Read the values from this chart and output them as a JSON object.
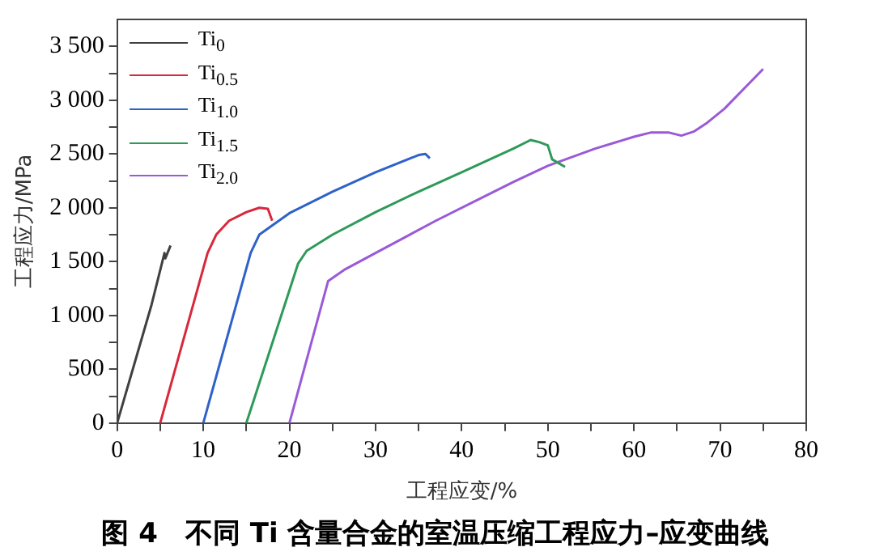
{
  "chart_data": {
    "type": "line",
    "title": "图 4　不同 Ti 含量合金的室温压缩工程应力–应变曲线",
    "xlabel": "工程应变/%",
    "ylabel": "工程应力/MPa",
    "xlim": [
      0,
      80
    ],
    "xticks": [
      0,
      {
        "value": 5,
        "label": null
      },
      10,
      {
        "value": 15,
        "label": null
      },
      20,
      {
        "value": 25,
        "label": null
      },
      30,
      {
        "value": 35,
        "label": null
      },
      40,
      {
        "value": 45,
        "label": null
      },
      50,
      {
        "value": 55,
        "label": null
      },
      60,
      {
        "value": 65,
        "label": null
      },
      70,
      {
        "value": 75,
        "label": null
      },
      80
    ],
    "ylim": [
      0,
      3750
    ],
    "yticks": [
      0,
      {
        "value": 250,
        "label": null
      },
      500,
      {
        "value": 750,
        "label": null
      },
      {
        "value": 1000,
        "label": "1 000"
      },
      {
        "value": 1250,
        "label": null
      },
      {
        "value": 1500,
        "label": "1 500"
      },
      {
        "value": 1750,
        "label": null
      },
      {
        "value": 2000,
        "label": "2 000"
      },
      {
        "value": 2250,
        "label": null
      },
      {
        "value": 2500,
        "label": "2 500"
      },
      {
        "value": 2750,
        "label": null
      },
      {
        "value": 3000,
        "label": "3 000"
      },
      {
        "value": 3250,
        "label": null
      },
      {
        "value": 3500,
        "label": "3 500"
      }
    ],
    "grid": false,
    "legend": "top left",
    "marker": "none",
    "line_style": "solid",
    "series": [
      {
        "name": "Ti$_{0}$",
        "color": "#404040",
        "x": [
          0,
          4,
          5.5,
          5.6,
          6.2
        ],
        "values": [
          0,
          1100,
          1580,
          1530,
          1650
        ]
      },
      {
        "name": "Ti$_{0.5}$",
        "color": "#d8283c",
        "x": [
          5,
          10.5,
          11.5,
          13,
          15,
          16.5,
          17.5,
          18
        ],
        "values": [
          0,
          1580,
          1750,
          1880,
          1960,
          2000,
          1990,
          1880
        ]
      },
      {
        "name": "Ti$_{1.0}$",
        "color": "#2f62c8",
        "x": [
          10,
          15.5,
          16.5,
          20,
          25,
          30,
          35,
          35.8,
          36.3
        ],
        "values": [
          0,
          1580,
          1750,
          1950,
          2150,
          2330,
          2490,
          2500,
          2460
        ]
      },
      {
        "name": "Ti$_{1.5}$",
        "color": "#2e9a5a",
        "x": [
          15,
          21,
          22,
          25,
          30,
          35,
          40,
          46,
          48,
          49,
          50,
          50.5,
          52
        ],
        "values": [
          0,
          1480,
          1600,
          1750,
          1960,
          2150,
          2330,
          2550,
          2630,
          2610,
          2580,
          2450,
          2380
        ]
      },
      {
        "name": "Ti$_{2.0}$",
        "color": "#9a5ad8",
        "x": [
          20,
          24.5,
          26.5,
          30,
          37,
          46,
          50,
          55.5,
          60,
          62,
          64,
          65.5,
          67,
          68.5,
          70.5,
          75
        ],
        "values": [
          0,
          1320,
          1430,
          1580,
          1880,
          2240,
          2390,
          2550,
          2660,
          2700,
          2700,
          2670,
          2710,
          2790,
          2920,
          3290
        ]
      }
    ]
  }
}
